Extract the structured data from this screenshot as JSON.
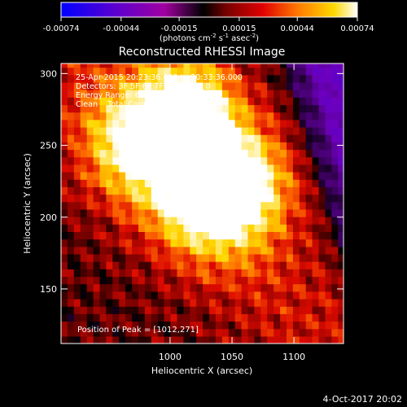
{
  "colorbar": {
    "tick_labels": [
      "-0.00074",
      "-0.00044",
      "-0.00015",
      "0.00015",
      "0.00044",
      "0.00074"
    ],
    "tick_values": [
      -0.00074,
      -0.00044,
      -0.00015,
      0.00015,
      0.00044,
      0.00074
    ],
    "range": [
      -0.00074,
      0.00074
    ],
    "units_parts": [
      "(photons cm",
      "-2",
      " s",
      "-1",
      " asec",
      "-2",
      ")"
    ],
    "colors": [
      "#0000ff",
      "#6a00c8",
      "#a000a0",
      "#000000",
      "#c80000",
      "#ff6a00",
      "#ffd000",
      "#ffffff"
    ]
  },
  "chart_data": {
    "type": "heatmap",
    "title": "Reconstructed RHESSI Image",
    "xlabel": "Heliocentric X (arcsec)",
    "ylabel": "Heliocentric Y (arcsec)",
    "xlim": [
      912,
      1140
    ],
    "ylim": [
      112,
      307
    ],
    "x_ticks": [
      1000,
      1050,
      1100
    ],
    "y_ticks": [
      150,
      200,
      250,
      300
    ],
    "annotations": [
      "25-Apr-2015 20:23:36.000 to 20:33:36.000",
      "Detectors: 3F 5F 6F 7F 8F 9F, Att 0",
      "Energy Range: 6.0 - 12.0 keV",
      "Clean    Total Counts: 2.87E+04"
    ],
    "peak_label": "Position of Peak = [1012,271]",
    "peak": [
      1012,
      271
    ],
    "sources": [
      {
        "x": 1012,
        "y": 271,
        "intensity": 0.00074
      },
      {
        "x": 1055,
        "y": 220,
        "intensity": 0.00062
      },
      {
        "x": 1020,
        "y": 212,
        "intensity": 0.00055
      },
      {
        "x": 965,
        "y": 248,
        "intensity": 0.00048
      }
    ],
    "negative_region": {
      "x_min": 1090,
      "y_min": 215,
      "value": -0.00035
    }
  },
  "timestamp": "4-Oct-2017 20:02"
}
